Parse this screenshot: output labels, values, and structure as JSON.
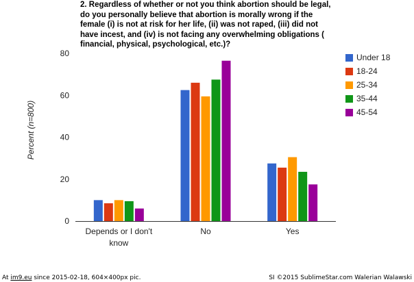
{
  "chart_data": {
    "type": "bar",
    "title": "2. Regardless of whether or not you think abortion should be legal,\ndo you personally believe that abortion is morally wrong if the\nfemale (i) is not at risk for her life, (ii) was not raped, (iii) did not\nhave incest, and (iv) is not facing any overwhelming obligations (\nfinancial, physical, psychological, etc.)?",
    "ylabel": "Percent (n=800)",
    "xlabel": "",
    "ylim": [
      0,
      80
    ],
    "yticks": [
      0,
      20,
      40,
      60,
      80
    ],
    "grid": false,
    "legend_position": "right",
    "categories": [
      "Depends or I don't know",
      "No",
      "Yes"
    ],
    "series": [
      {
        "name": "Under 18",
        "color": "#3366cc",
        "values": [
          10,
          62.5,
          27.5
        ]
      },
      {
        "name": "18-24",
        "color": "#dc3912",
        "values": [
          8.5,
          66,
          25.5
        ]
      },
      {
        "name": "25-34",
        "color": "#ff9900",
        "values": [
          10,
          59.5,
          30.5
        ]
      },
      {
        "name": "35-44",
        "color": "#109618",
        "values": [
          9.5,
          67.5,
          23.5
        ]
      },
      {
        "name": "45-54",
        "color": "#990099",
        "values": [
          6,
          76.5,
          17.5
        ]
      }
    ]
  },
  "footer": {
    "prefix": "At ",
    "site": "im9.eu",
    "suffix": " since 2015-02-18, 604×400px pic.",
    "right": "SI ©2015 SublimeStar.com Walerian Walawski"
  }
}
